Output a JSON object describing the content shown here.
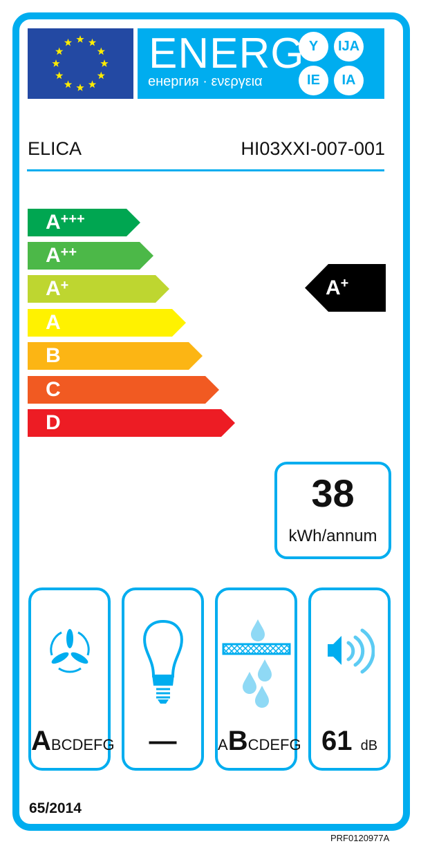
{
  "header": {
    "energy_word": "ENERG",
    "subtitle": "енергия · ενεργεια",
    "suffixes": [
      "Y",
      "IJA",
      "IE",
      "IA"
    ]
  },
  "supplier": "ELICA",
  "model": "HI03XXI-007-001",
  "scale": {
    "classes": [
      {
        "letter": "A",
        "plus": "+++",
        "color": "#00a651"
      },
      {
        "letter": "A",
        "plus": "++",
        "color": "#4cb848"
      },
      {
        "letter": "A",
        "plus": "+",
        "color": "#bed630"
      },
      {
        "letter": "A",
        "plus": "",
        "color": "#fff200"
      },
      {
        "letter": "B",
        "plus": "",
        "color": "#fcb514"
      },
      {
        "letter": "C",
        "plus": "",
        "color": "#f15a22"
      },
      {
        "letter": "D",
        "plus": "",
        "color": "#ed1c24"
      }
    ]
  },
  "rating": {
    "letter": "A",
    "plus": "+"
  },
  "consumption": {
    "value": "38",
    "unit": "kWh/annum"
  },
  "fluid_dynamic": {
    "selected": "A",
    "rest": "BCDEFG",
    "icon": "fan-icon"
  },
  "lighting": {
    "value": "—",
    "icon": "light-bulb-icon"
  },
  "grease_filter": {
    "before": "A",
    "selected": "B",
    "rest": "CDEFG",
    "icon": "grease-filter-icon"
  },
  "noise": {
    "value": "61",
    "unit": "dB",
    "icon": "speaker-icon"
  },
  "regulation": "65/2014",
  "code": "PRF0120977A",
  "colors": {
    "accent": "#00adef",
    "eu_blue": "#2349a3",
    "star": "#ffed00"
  }
}
